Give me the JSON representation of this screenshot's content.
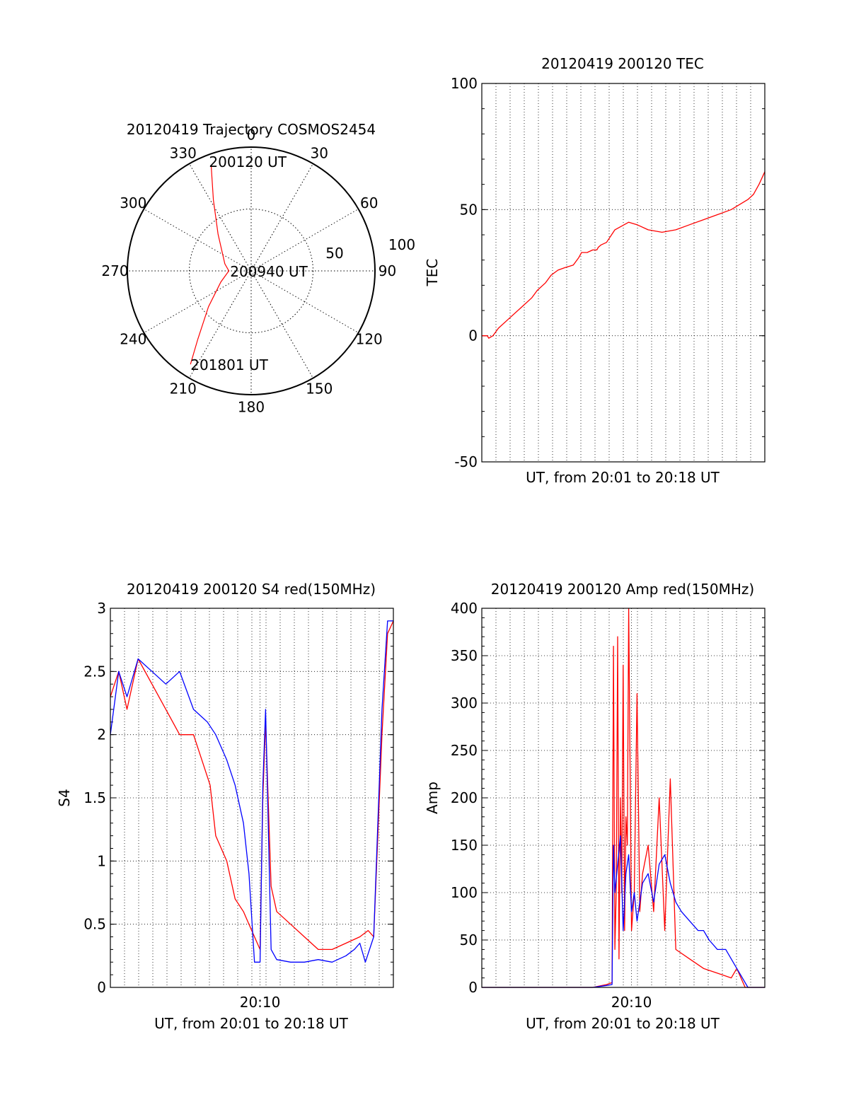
{
  "chart_data": [
    {
      "type": "polar",
      "title": "20120419 Trajectory COSMOS2454",
      "azimuth_labels": [
        "0",
        "30",
        "60",
        "90",
        "120",
        "150",
        "180",
        "210",
        "240",
        "270",
        "300",
        "330"
      ],
      "radial_labels": [
        "50",
        "100"
      ],
      "rmax": 100,
      "grid": true,
      "series": [
        {
          "color": "#ff0000",
          "points": [
            [
              339,
              90
            ],
            [
              332,
              65
            ],
            [
              318,
              40
            ],
            [
              285,
              22
            ],
            [
              270,
              18
            ],
            [
              250,
              26
            ],
            [
              230,
              45
            ],
            [
              218,
              70
            ],
            [
              213,
              90
            ]
          ]
        }
      ],
      "annotations": [
        {
          "text": "200120 UT",
          "az": 339,
          "r": 95
        },
        {
          "text": "200940 UT",
          "az": 270,
          "r": 17
        },
        {
          "text": "201801 UT",
          "az": 213,
          "r": 90
        }
      ]
    },
    {
      "type": "line",
      "title": "20120419 200120 TEC",
      "xlabel": "UT, from 20:01 to 20:18 UT",
      "ylabel": "TEC",
      "xlim": [
        0,
        1021
      ],
      "ylim": [
        -50,
        100
      ],
      "yticks": [
        "-50",
        "0",
        "50",
        "100"
      ],
      "xticks": [],
      "grid": true,
      "series": [
        {
          "color": "#ff0000",
          "x": [
            0,
            20,
            25,
            40,
            60,
            100,
            150,
            180,
            200,
            230,
            250,
            275,
            300,
            330,
            350,
            360,
            380,
            400,
            415,
            420,
            430,
            450,
            480,
            530,
            560,
            600,
            650,
            700,
            750,
            800,
            850,
            900,
            930,
            960,
            980,
            1000,
            1021
          ],
          "y": [
            0,
            0,
            -1,
            0,
            3,
            7,
            12,
            15,
            18,
            21,
            24,
            26,
            27,
            28,
            31,
            33,
            33,
            34,
            34,
            35,
            36,
            37,
            42,
            45,
            44,
            42,
            41,
            42,
            44,
            46,
            48,
            50,
            52,
            54,
            56,
            60,
            65
          ]
        }
      ]
    },
    {
      "type": "line",
      "title": "20120419 200120 S4 red(150MHz)",
      "xlabel": "UT, from 20:01 to 20:18 UT",
      "ylabel": "S4",
      "xlim": [
        0,
        1021
      ],
      "ylim": [
        0,
        3
      ],
      "yticks": [
        "0",
        "0.5",
        "1",
        "1.5",
        "2",
        "2.5",
        "3"
      ],
      "xticks": [
        {
          "value": 540,
          "label": "20:10"
        }
      ],
      "grid": true,
      "series": [
        {
          "color": "#ff0000",
          "x": [
            0,
            30,
            60,
            100,
            150,
            200,
            250,
            300,
            330,
            360,
            380,
            420,
            450,
            480,
            500,
            520,
            540,
            550,
            560,
            580,
            600,
            650,
            700,
            750,
            800,
            850,
            900,
            930,
            950,
            980,
            1000,
            1021
          ],
          "y": [
            2.3,
            2.5,
            2.2,
            2.6,
            2.4,
            2.2,
            2.0,
            2.0,
            1.8,
            1.6,
            1.2,
            1.0,
            0.7,
            0.6,
            0.5,
            0.4,
            0.3,
            1.5,
            2.1,
            0.8,
            0.6,
            0.5,
            0.4,
            0.3,
            0.3,
            0.35,
            0.4,
            0.45,
            0.4,
            2.0,
            2.8,
            2.9
          ]
        },
        {
          "color": "#0000ff",
          "x": [
            0,
            30,
            60,
            100,
            150,
            200,
            250,
            300,
            350,
            380,
            420,
            450,
            480,
            500,
            520,
            540,
            550,
            560,
            580,
            600,
            650,
            700,
            750,
            800,
            850,
            880,
            900,
            920,
            950,
            980,
            1000,
            1021
          ],
          "y": [
            2.0,
            2.5,
            2.3,
            2.6,
            2.5,
            2.4,
            2.5,
            2.2,
            2.1,
            2.0,
            1.8,
            1.6,
            1.3,
            0.9,
            0.2,
            0.2,
            1.6,
            2.2,
            0.3,
            0.22,
            0.2,
            0.2,
            0.22,
            0.2,
            0.25,
            0.3,
            0.35,
            0.2,
            0.4,
            2.2,
            2.9,
            2.9
          ]
        }
      ]
    },
    {
      "type": "line",
      "title": "20120419 200120 Amp red(150MHz)",
      "xlabel": "UT, from 20:01 to 20:18 UT",
      "ylabel": "Amp",
      "xlim": [
        0,
        1021
      ],
      "ylim": [
        0,
        400
      ],
      "yticks": [
        "0",
        "50",
        "100",
        "150",
        "200",
        "250",
        "300",
        "350",
        "400"
      ],
      "xticks": [
        {
          "value": 540,
          "label": "20:10"
        }
      ],
      "grid": true,
      "series": [
        {
          "color": "#ff0000",
          "x": [
            0,
            100,
            200,
            300,
            400,
            450,
            470,
            475,
            480,
            485,
            490,
            495,
            500,
            505,
            510,
            515,
            520,
            525,
            530,
            540,
            550,
            560,
            570,
            580,
            600,
            620,
            640,
            660,
            680,
            700,
            750,
            800,
            850,
            900,
            920,
            950,
            1000,
            1021
          ],
          "y": [
            0,
            0,
            0,
            0,
            0,
            3,
            5,
            360,
            40,
            100,
            370,
            30,
            200,
            100,
            340,
            60,
            180,
            150,
            400,
            60,
            100,
            310,
            80,
            120,
            150,
            80,
            200,
            60,
            220,
            40,
            30,
            20,
            15,
            10,
            20,
            0,
            0,
            0
          ]
        },
        {
          "color": "#0000ff",
          "x": [
            0,
            100,
            200,
            300,
            400,
            450,
            470,
            475,
            480,
            490,
            500,
            510,
            520,
            530,
            540,
            550,
            560,
            580,
            600,
            620,
            640,
            660,
            680,
            700,
            720,
            750,
            780,
            800,
            820,
            850,
            880,
            900,
            920,
            940,
            960,
            1021
          ],
          "y": [
            0,
            0,
            0,
            0,
            0,
            2,
            3,
            150,
            100,
            130,
            160,
            60,
            120,
            140,
            80,
            100,
            70,
            110,
            120,
            90,
            130,
            140,
            110,
            90,
            80,
            70,
            60,
            60,
            50,
            40,
            40,
            30,
            20,
            10,
            0,
            0
          ]
        }
      ]
    }
  ]
}
